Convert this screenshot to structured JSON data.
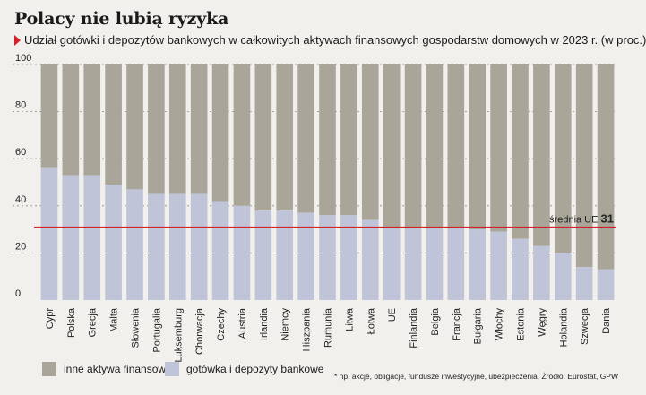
{
  "header": {
    "title": "Polacy nie lubią ryzyka",
    "subtitle": "Udział gotówki i depozytów bankowych w całkowitych aktywach finansowych gospodarstw domowych w 2023 r. (w proc.)"
  },
  "legend": {
    "other_label": "inne aktywa finansowe*",
    "cash_label": "gotówka i depozyty bankowe"
  },
  "footnote": "* np. akcje, obligacje, fundusze inwestycyjne, ubezpieczenia. Źródło: Eurostat, GPW",
  "colors": {
    "other": "#a9a699",
    "cash": "#bfc4d9",
    "average_line": "#d6202a",
    "background": "#f2f0ec"
  },
  "chart_data": {
    "type": "bar",
    "stacked": true,
    "categories": [
      "Cypr",
      "Polska",
      "Grecja",
      "Malta",
      "Słowenia",
      "Portugalia",
      "Luksemburg",
      "Chorwacja",
      "Czechy",
      "Austria",
      "Irlandia",
      "Niemcy",
      "Hiszpania",
      "Rumunia",
      "Litwa",
      "Łotwa",
      "UE",
      "Finlandia",
      "Belgia",
      "Francja",
      "Bułgaria",
      "Włochy",
      "Estonia",
      "Węgry",
      "Holandia",
      "Szwecja",
      "Dania"
    ],
    "series": [
      {
        "name": "gotówka i depozyty bankowe",
        "values": [
          56,
          53,
          53,
          49,
          47,
          45,
          45,
          45,
          42,
          40,
          38,
          38,
          37,
          36,
          36,
          34,
          31,
          31,
          31,
          31,
          30,
          29,
          26,
          23,
          20,
          14,
          13
        ]
      },
      {
        "name": "inne aktywa finansowe*",
        "values": [
          44,
          47,
          47,
          51,
          53,
          55,
          55,
          55,
          58,
          60,
          62,
          62,
          63,
          64,
          64,
          66,
          69,
          69,
          69,
          69,
          70,
          71,
          74,
          77,
          80,
          86,
          87
        ]
      }
    ],
    "ylim": [
      0,
      100
    ],
    "yticks": [
      0,
      20,
      40,
      60,
      80,
      100
    ],
    "grid": true,
    "average": {
      "label": "średnia UE",
      "value": 31
    },
    "legend_position": "bottom-left"
  }
}
